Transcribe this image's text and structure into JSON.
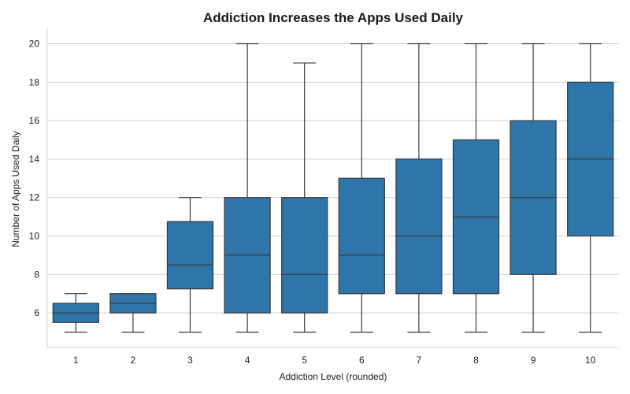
{
  "chart_data": {
    "type": "box",
    "title": "Addiction Increases the Apps Used Daily",
    "xlabel": "Addiction Level (rounded)",
    "ylabel": "Number of Apps Used Daily",
    "ylim": [
      4.2,
      20.8
    ],
    "yticks": [
      6,
      8,
      10,
      12,
      14,
      16,
      18,
      20
    ],
    "grid": true,
    "color": "#2e75aa",
    "categories": [
      "1",
      "2",
      "3",
      "4",
      "5",
      "6",
      "7",
      "8",
      "9",
      "10"
    ],
    "boxes": [
      {
        "min": 5,
        "q1": 5.5,
        "median": 6,
        "q3": 6.5,
        "max": 7
      },
      {
        "min": 5,
        "q1": 6,
        "median": 6.5,
        "q3": 7,
        "max": 7
      },
      {
        "min": 5,
        "q1": 7.25,
        "median": 8.5,
        "q3": 10.75,
        "max": 12
      },
      {
        "min": 5,
        "q1": 6,
        "median": 9,
        "q3": 12,
        "max": 20
      },
      {
        "min": 5,
        "q1": 6,
        "median": 8,
        "q3": 12,
        "max": 19
      },
      {
        "min": 5,
        "q1": 7,
        "median": 9,
        "q3": 13,
        "max": 20
      },
      {
        "min": 5,
        "q1": 7,
        "median": 10,
        "q3": 14,
        "max": 20
      },
      {
        "min": 5,
        "q1": 7,
        "median": 11,
        "q3": 15,
        "max": 20
      },
      {
        "min": 5,
        "q1": 8,
        "median": 12,
        "q3": 16,
        "max": 20
      },
      {
        "min": 5,
        "q1": 10,
        "median": 14,
        "q3": 18,
        "max": 20
      }
    ]
  }
}
